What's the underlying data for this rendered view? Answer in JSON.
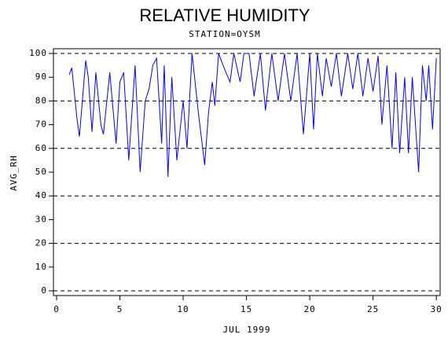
{
  "chart_data": {
    "type": "line",
    "title": "RELATIVE HUMIDITY",
    "subtitle": "STATION=OYSM",
    "x_label": "JUL 1999",
    "y_label": "AVG_RH",
    "x": [
      1.0,
      1.2,
      1.6,
      1.8,
      2.3,
      2.5,
      2.8,
      3.1,
      3.5,
      3.7,
      4.2,
      4.7,
      5.0,
      5.3,
      5.7,
      6.2,
      6.6,
      7.0,
      7.3,
      7.6,
      7.9,
      8.3,
      8.5,
      8.8,
      9.1,
      9.5,
      10.0,
      10.3,
      10.7,
      11.2,
      11.7,
      12.0,
      12.3,
      12.5,
      12.8,
      13.3,
      13.7,
      14.0,
      14.5,
      14.8,
      15.2,
      15.6,
      16.1,
      16.5,
      17.0,
      17.5,
      18.0,
      18.5,
      19.0,
      19.5,
      20.0,
      20.3,
      20.6,
      21.0,
      21.3,
      21.7,
      22.1,
      22.5,
      23.0,
      23.4,
      23.8,
      24.2,
      24.6,
      25.0,
      25.4,
      25.7,
      26.1,
      26.5,
      26.8,
      27.1,
      27.5,
      27.8,
      28.1,
      28.6,
      28.9,
      29.2,
      29.4,
      29.7,
      30.0
    ],
    "series": [
      {
        "color": "#0000ff",
        "values": [
          91,
          94,
          73,
          65,
          97,
          90,
          67,
          92,
          70,
          66,
          92,
          62,
          88,
          92,
          55,
          95,
          50,
          80,
          85,
          95,
          98,
          62,
          95,
          48,
          90,
          55,
          80,
          60,
          100,
          75,
          53,
          75,
          88,
          78,
          100,
          93,
          88,
          100,
          88,
          100,
          100,
          82,
          100,
          76,
          100,
          80,
          100,
          80,
          100,
          66,
          100,
          68,
          100,
          82,
          98,
          86,
          100,
          82,
          100,
          85,
          100,
          82,
          98,
          84,
          99,
          70,
          95,
          60,
          92,
          58,
          90,
          58,
          90,
          50,
          95,
          80,
          95,
          68,
          98
        ]
      }
    ],
    "xlim": [
      -0.25,
      30.3
    ],
    "ylim": [
      -2,
      102
    ],
    "xticks": [
      0,
      5,
      10,
      15,
      20,
      25,
      30
    ],
    "yticks": [
      0,
      10,
      20,
      30,
      40,
      50,
      60,
      70,
      80,
      90,
      100
    ],
    "reference_lines": [
      0,
      20,
      40,
      60,
      80,
      100
    ]
  }
}
